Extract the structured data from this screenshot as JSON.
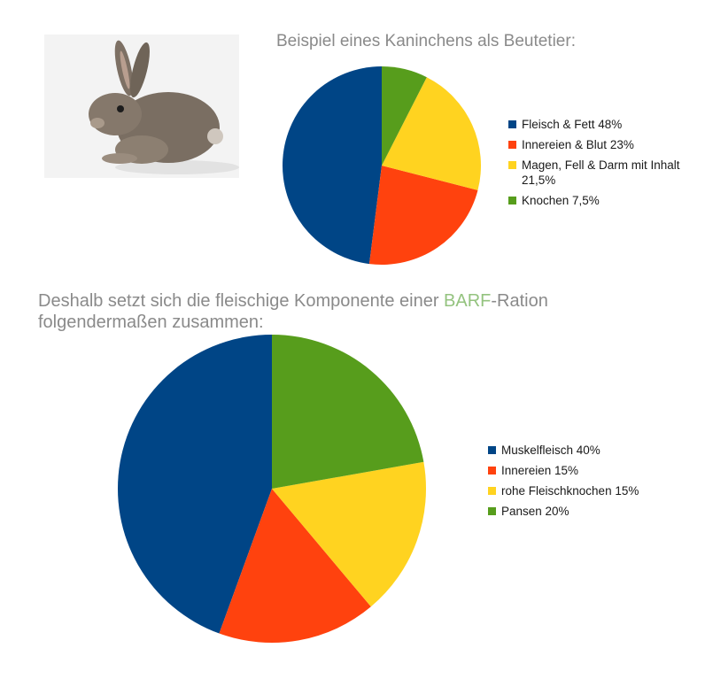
{
  "title_top": "Beispiel eines Kaninchens als Beutetier:",
  "title_bottom": {
    "before": "Deshalb setzt sich die fleischige Komponente einer ",
    "highlight": "BARF",
    "after": "-Ration folgendermaßen zusammen:"
  },
  "colors": {
    "highlight": "#94c37f"
  },
  "chart_data": [
    {
      "type": "pie",
      "title": "Beispiel eines Kaninchens als Beutetier:",
      "categories": [
        "Fleisch & Fett 48%",
        "Innereien & Blut 23%",
        "Magen, Fell & Darm mit Inhalt 21,5%",
        "Knochen 7,5%"
      ],
      "values": [
        48,
        23,
        21.5,
        7.5
      ],
      "colors": [
        "#004586",
        "#ff420e",
        "#ffd320",
        "#579d1c"
      ],
      "legend_position": "right"
    },
    {
      "type": "pie",
      "title": "Deshalb setzt sich die fleischige Komponente einer BARF-Ration folgendermaßen zusammen:",
      "categories": [
        "Muskelfleisch 40%",
        "Innereien 15%",
        "rohe Fleischknochen 15%",
        "Pansen 20%"
      ],
      "values": [
        40,
        15,
        15,
        20
      ],
      "colors": [
        "#004586",
        "#ff420e",
        "#ffd320",
        "#579d1c"
      ],
      "legend_position": "right"
    }
  ]
}
